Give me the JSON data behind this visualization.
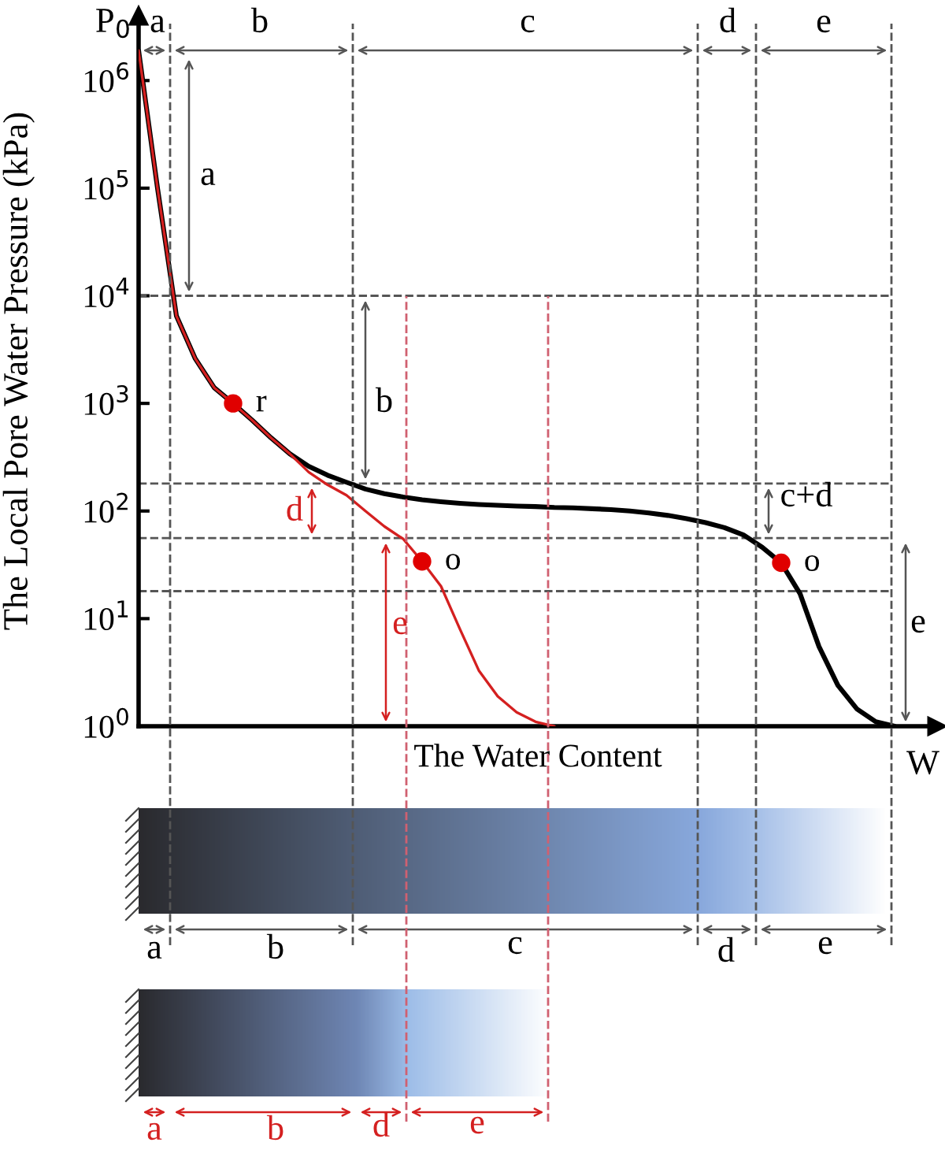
{
  "chart_data": {
    "type": "line",
    "xlabel": "The Water Content",
    "ylabel": "The Local Pore Water Pressure (kPa)",
    "categories": [
      null,
      null,
      null,
      null,
      null,
      null,
      null,
      null,
      null,
      null,
      null,
      null,
      null,
      null,
      null,
      null,
      null,
      null,
      null,
      null,
      null,
      null,
      null,
      null,
      null,
      null,
      null,
      null,
      null,
      null,
      null,
      null,
      null,
      null,
      null,
      null,
      null,
      null,
      null,
      null,
      null,
      null,
      null
    ],
    "series": [
      {
        "color": "#000000",
        "values": [
          1900000,
          100000,
          6500,
          2600,
          1400,
          1000,
          700,
          480,
          340,
          260,
          215,
          185,
          160,
          145,
          135,
          127,
          122,
          118,
          115,
          113,
          111,
          110,
          108,
          107,
          105,
          103,
          100,
          96,
          91,
          85,
          78,
          70,
          60,
          46,
          33,
          17,
          5.5,
          2.4,
          1.45,
          1.1,
          1.0,
          null,
          null
        ]
      },
      {
        "color": "#d42020",
        "values": [
          1900000,
          100000,
          6500,
          2600,
          1400,
          1000,
          700,
          480,
          340,
          230,
          175,
          140,
          100,
          72,
          55,
          34,
          20,
          8,
          3.3,
          1.9,
          1.35,
          1.1,
          1.0,
          null,
          null,
          null,
          null,
          null,
          null,
          null,
          null,
          null,
          null,
          null,
          null,
          null,
          null,
          null,
          null,
          null,
          null,
          null,
          null
        ]
      },
      {
        "type": "scatter",
        "name": "r",
        "marker": "circle",
        "color": "#e00000",
        "values": [
          null,
          null,
          null,
          null,
          null,
          1000,
          null,
          null,
          null,
          null,
          null,
          null,
          null,
          null,
          null,
          null,
          null,
          null,
          null,
          null,
          null,
          null,
          null,
          null,
          null,
          null,
          null,
          null,
          null,
          null,
          null,
          null,
          null,
          null,
          null,
          null,
          null,
          null,
          null,
          null,
          null,
          null,
          null
        ]
      },
      {
        "type": "scatter",
        "name": "o",
        "marker": "circle",
        "color": "#e00000",
        "values": [
          null,
          null,
          null,
          null,
          null,
          null,
          null,
          null,
          null,
          null,
          null,
          null,
          null,
          null,
          null,
          34,
          null,
          null,
          null,
          null,
          null,
          null,
          null,
          null,
          null,
          null,
          null,
          null,
          null,
          null,
          null,
          null,
          null,
          null,
          null,
          null,
          null,
          null,
          null,
          null,
          null,
          null,
          null
        ]
      },
      {
        "type": "scatter",
        "name": "o",
        "marker": "circle",
        "color": "#e00000",
        "values": [
          null,
          null,
          null,
          null,
          null,
          null,
          null,
          null,
          null,
          null,
          null,
          null,
          null,
          null,
          null,
          null,
          null,
          null,
          null,
          null,
          null,
          null,
          null,
          null,
          null,
          null,
          null,
          null,
          null,
          null,
          null,
          null,
          null,
          null,
          33,
          null,
          null,
          null,
          null,
          null,
          null,
          null,
          null
        ]
      }
    ],
    "log": true,
    "ylim": [
      1,
      4000000
    ],
    "yticks": [
      {
        "value": 1,
        "label": "10$^{0}$"
      },
      {
        "value": 10,
        "label": "10$^{1}$"
      },
      {
        "value": 100,
        "label": "10$^{2}$"
      },
      {
        "value": 1000,
        "label": "10$^{3}$"
      },
      {
        "value": 10000,
        "label": "10$^{4}$"
      },
      {
        "value": 100000,
        "label": "10$^{5}$"
      },
      {
        "value": 1000000,
        "label": "10$^{6}$"
      }
    ],
    "ref_lines": [
      {
        "axis": "y",
        "value": 10000,
        "color": "#555555",
        "line_style": "dashed"
      },
      {
        "axis": "y",
        "value": 180,
        "color": "#555555",
        "line_style": "dashed"
      },
      {
        "axis": "y",
        "value": 56,
        "color": "#555555",
        "line_style": "dashed"
      },
      {
        "axis": "y",
        "value": 18,
        "color": "#555555",
        "line_style": "dashed"
      }
    ],
    "annotations": [
      "P$_{0}$",
      "W",
      "a",
      "b",
      "c",
      "d",
      "e",
      "a",
      "b",
      "c+d",
      "e",
      "d",
      "e",
      "a",
      "b",
      "c",
      "d",
      "e",
      "a",
      "b",
      "d",
      "e"
    ],
    "legend": false,
    "grid": false,
    "tick_labels": "y"
  }
}
